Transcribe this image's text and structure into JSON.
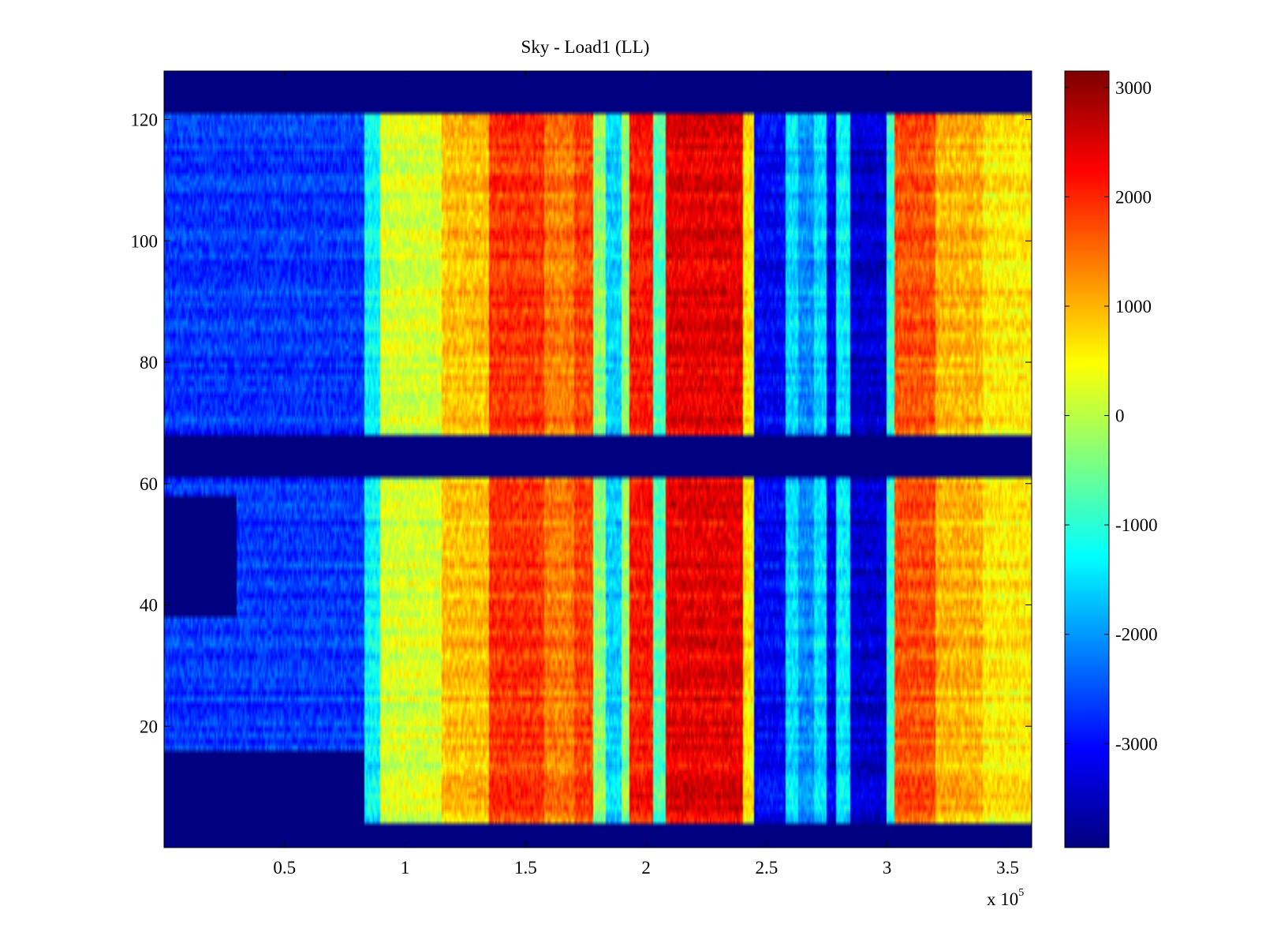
{
  "chart_data": {
    "type": "heatmap",
    "title": "Sky - Load1 (LL)",
    "xlabel": "",
    "ylabel": "",
    "x_range": [
      0,
      360000
    ],
    "y_range": [
      0,
      128
    ],
    "x_multiplier_label": "x 10",
    "x_multiplier_exponent": "5",
    "x_ticks": [
      {
        "value": 50000,
        "label": "0.5"
      },
      {
        "value": 100000,
        "label": "1"
      },
      {
        "value": 150000,
        "label": "1.5"
      },
      {
        "value": 200000,
        "label": "2"
      },
      {
        "value": 250000,
        "label": "2.5"
      },
      {
        "value": 300000,
        "label": "3"
      },
      {
        "value": 350000,
        "label": "3.5"
      }
    ],
    "y_ticks": [
      {
        "value": 20,
        "label": "20"
      },
      {
        "value": 40,
        "label": "40"
      },
      {
        "value": 60,
        "label": "60"
      },
      {
        "value": 80,
        "label": "80"
      },
      {
        "value": 100,
        "label": "100"
      },
      {
        "value": 120,
        "label": "120"
      }
    ],
    "colorbar": {
      "colormap": "jet",
      "range": [
        -3950,
        3150
      ],
      "ticks": [
        {
          "value": 3000,
          "label": "3000"
        },
        {
          "value": 2000,
          "label": "2000"
        },
        {
          "value": 1000,
          "label": "1000"
        },
        {
          "value": 0,
          "label": "0"
        },
        {
          "value": -1000,
          "label": "-1000"
        },
        {
          "value": -2000,
          "label": "-2000"
        },
        {
          "value": -3000,
          "label": "-3000"
        }
      ]
    },
    "fill_value": -3950,
    "x_bands": [
      {
        "x0": 0,
        "x1": 83000,
        "value": -2700
      },
      {
        "x0": 83000,
        "x1": 90000,
        "value": -1300
      },
      {
        "x0": 90000,
        "x1": 115000,
        "value": 200
      },
      {
        "x0": 115000,
        "x1": 135000,
        "value": 900
      },
      {
        "x0": 135000,
        "x1": 158000,
        "value": 1900
      },
      {
        "x0": 158000,
        "x1": 170000,
        "value": 1400
      },
      {
        "x0": 170000,
        "x1": 178000,
        "value": 1800
      },
      {
        "x0": 178000,
        "x1": 183000,
        "value": -300
      },
      {
        "x0": 183000,
        "x1": 190000,
        "value": -1600
      },
      {
        "x0": 190000,
        "x1": 193000,
        "value": -300
      },
      {
        "x0": 193000,
        "x1": 203000,
        "value": 2100
      },
      {
        "x0": 203000,
        "x1": 208000,
        "value": -800
      },
      {
        "x0": 208000,
        "x1": 240000,
        "value": 2400
      },
      {
        "x0": 240000,
        "x1": 245000,
        "value": 600
      },
      {
        "x0": 245000,
        "x1": 258000,
        "value": -3100
      },
      {
        "x0": 258000,
        "x1": 263000,
        "value": -1500
      },
      {
        "x0": 263000,
        "x1": 270000,
        "value": -2100
      },
      {
        "x0": 270000,
        "x1": 275000,
        "value": -1500
      },
      {
        "x0": 275000,
        "x1": 279000,
        "value": -3200
      },
      {
        "x0": 279000,
        "x1": 285000,
        "value": -1400
      },
      {
        "x0": 285000,
        "x1": 300000,
        "value": -3400
      },
      {
        "x0": 300000,
        "x1": 303000,
        "value": -1000
      },
      {
        "x0": 303000,
        "x1": 320000,
        "value": 1700
      },
      {
        "x0": 320000,
        "x1": 340000,
        "value": 1000
      },
      {
        "x0": 340000,
        "x1": 360000,
        "value": 600
      }
    ],
    "valid_rows": [
      {
        "y0": 4,
        "y1": 61
      },
      {
        "y0": 68,
        "y1": 121
      }
    ],
    "empty_regions": [
      {
        "x0": 0,
        "x1": 83000,
        "y0": 4,
        "y1": 16
      },
      {
        "x0": 0,
        "x1": 30000,
        "y0": 38,
        "y1": 58
      }
    ]
  }
}
